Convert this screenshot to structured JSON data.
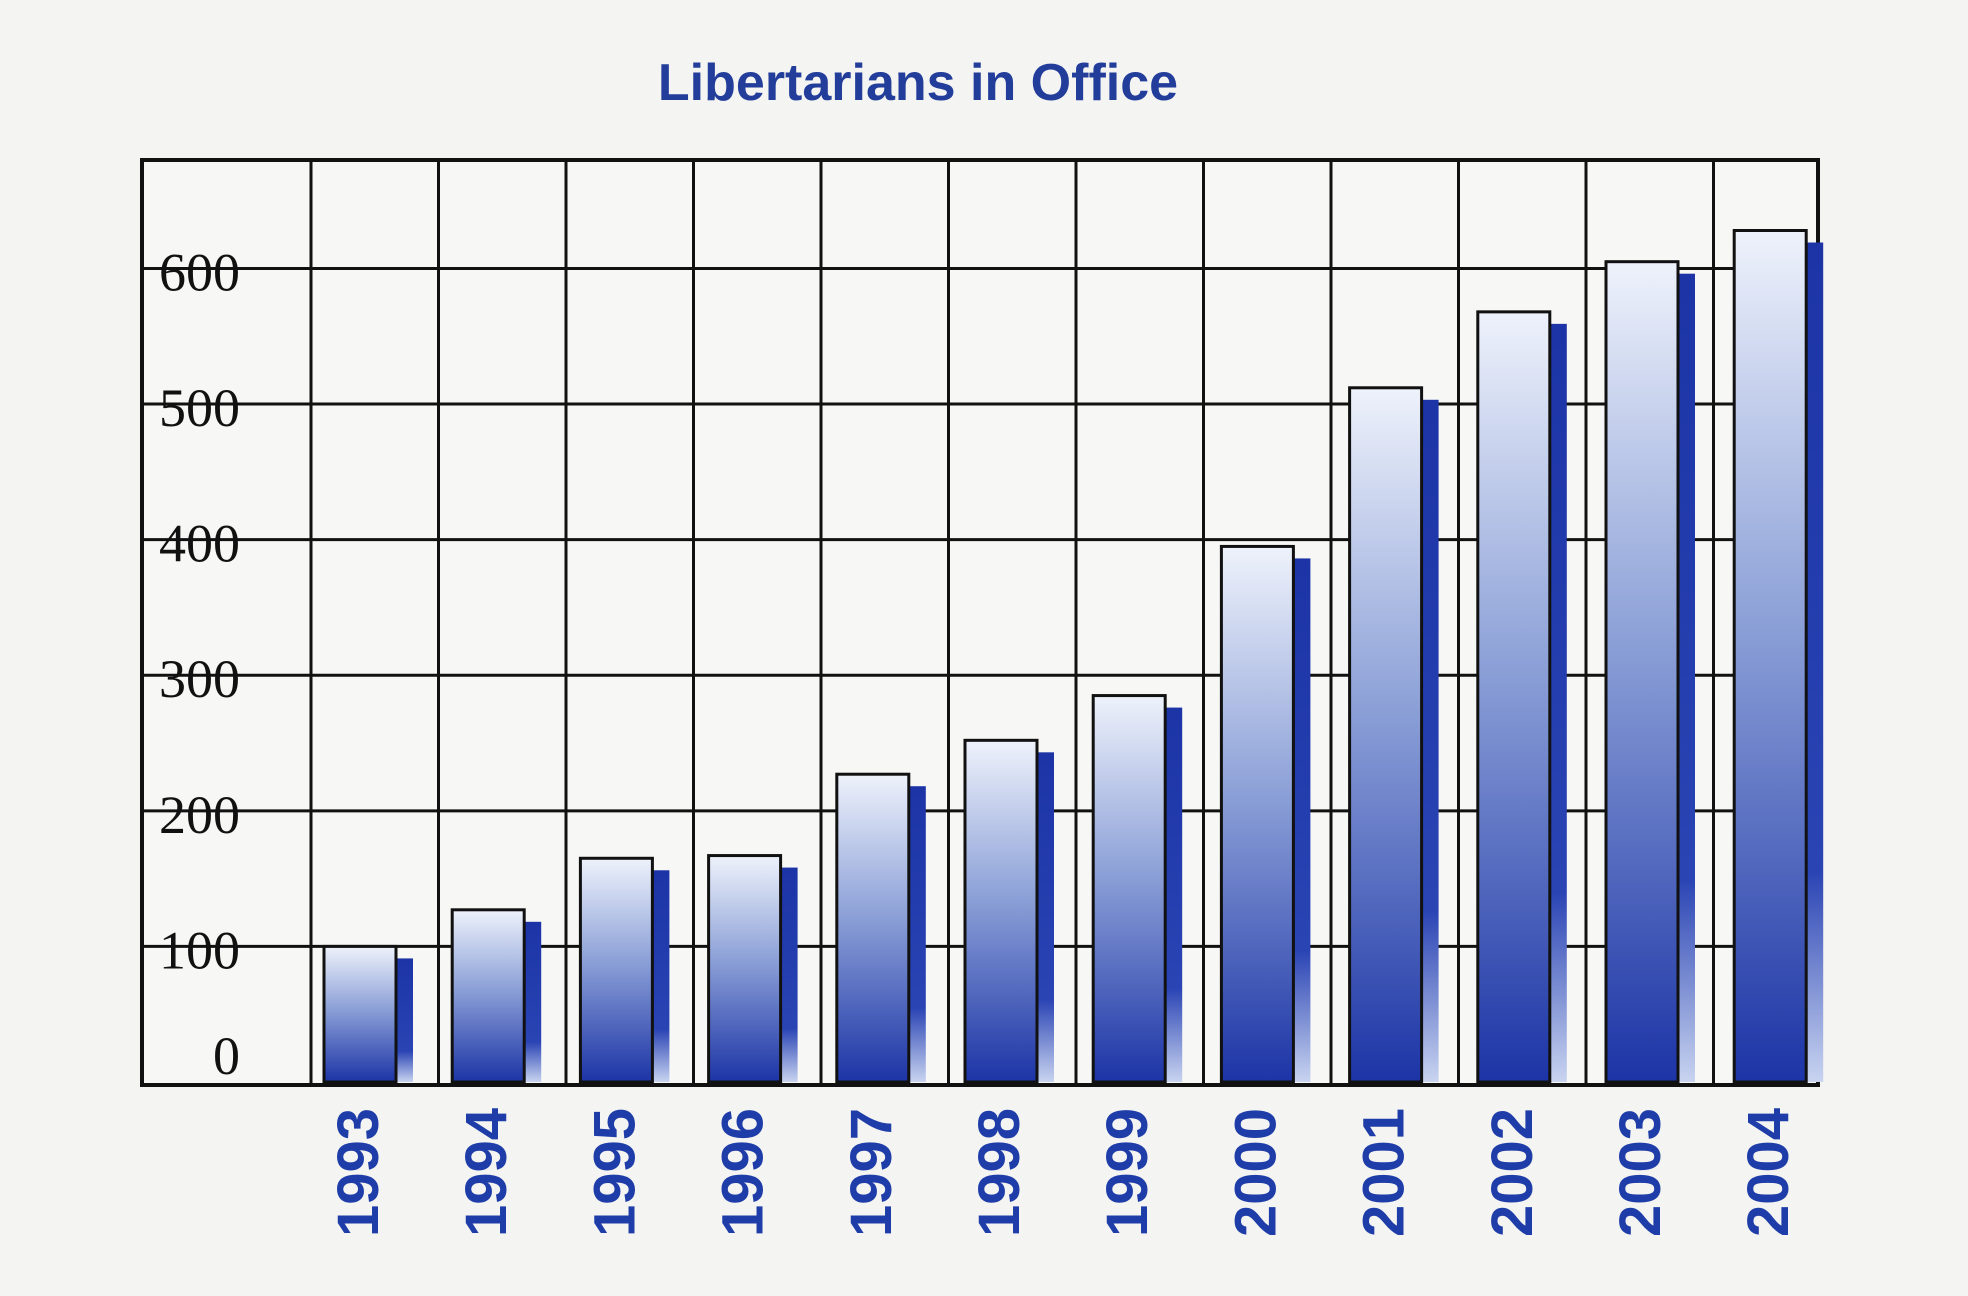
{
  "colors": {
    "title": "#223d9a",
    "tick_label_x": "#1f3da8",
    "bar_dark": "#1c34a6",
    "bar_light": "#eef2fb",
    "grid": "#111111",
    "background": "#f4f4f2"
  },
  "chart_data": {
    "type": "bar",
    "title": "Libertarians in Office",
    "xlabel": "",
    "ylabel": "",
    "categories": [
      "1993",
      "1994",
      "1995",
      "1996",
      "1997",
      "1998",
      "1999",
      "2000",
      "2001",
      "2002",
      "2003",
      "2004"
    ],
    "values": [
      100,
      127,
      165,
      167,
      227,
      252,
      285,
      395,
      512,
      568,
      605,
      628
    ],
    "ylim": [
      0,
      680
    ],
    "yticks": [
      0,
      100,
      200,
      300,
      400,
      500,
      600
    ],
    "ytick_labels": [
      "0",
      "100",
      "200",
      "300",
      "400",
      "500",
      "600"
    ],
    "grid": true,
    "legend": "none"
  }
}
